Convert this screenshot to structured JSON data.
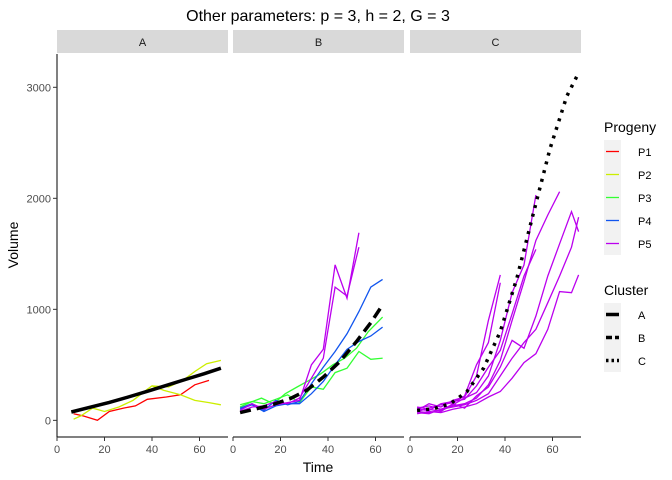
{
  "chart_data": {
    "type": "line",
    "title": "Other parameters: p = 3, h = 2, G = 3",
    "xlabel": "Time",
    "ylabel": "Volume",
    "xlim": [
      0,
      72
    ],
    "ylim": [
      -150,
      3300
    ],
    "x_ticks": [
      0,
      20,
      40,
      60
    ],
    "y_ticks": [
      0,
      1000,
      2000,
      3000
    ],
    "facets": [
      "A",
      "B",
      "C"
    ],
    "grid": false,
    "legend_placement": "right",
    "progeny_legend": {
      "title": "Progeny",
      "entries": [
        {
          "name": "P1",
          "color": "#ff0000"
        },
        {
          "name": "P2",
          "color": "#ccee00"
        },
        {
          "name": "P3",
          "color": "#33ff33"
        },
        {
          "name": "P4",
          "color": "#1155ee"
        },
        {
          "name": "P5",
          "color": "#bb00ee"
        }
      ]
    },
    "cluster_legend": {
      "title": "Cluster",
      "entries": [
        {
          "name": "A",
          "dash": "solid"
        },
        {
          "name": "B",
          "dash": "dashed"
        },
        {
          "name": "C",
          "dash": "dotted"
        }
      ]
    },
    "panels": [
      {
        "facet": "A",
        "series": [
          {
            "progeny": "P1",
            "x": [
              7,
              11,
              17,
              22,
              28,
              33,
              38,
              46,
              52,
              58,
              64
            ],
            "y": [
              60,
              40,
              0,
              80,
              110,
              130,
              190,
              210,
              230,
              320,
              360
            ]
          },
          {
            "progeny": "P2",
            "x": [
              7,
              10,
              15,
              20,
              26,
              32,
              38,
              40,
              45,
              52,
              58,
              64,
              69
            ],
            "y": [
              10,
              40,
              110,
              80,
              120,
              180,
              280,
              310,
              270,
              230,
              180,
              160,
              140
            ]
          },
          {
            "progeny": "P2",
            "x": [
              40,
              47,
              53,
              58,
              63,
              69
            ],
            "y": [
              310,
              300,
              360,
              440,
              510,
              540
            ]
          }
        ],
        "cluster_curve": {
          "cluster": "A",
          "x": [
            6,
            14,
            22,
            30,
            38,
            46,
            54,
            62,
            69
          ],
          "y": [
            75,
            118,
            162,
            210,
            262,
            315,
            368,
            420,
            470
          ]
        }
      },
      {
        "facet": "B",
        "series": [
          {
            "progeny": "P3",
            "x": [
              3,
              7,
              12,
              17,
              22,
              27,
              32,
              37,
              42,
              47,
              52,
              57,
              63
            ],
            "y": [
              120,
              160,
              200,
              150,
              240,
              300,
              360,
              420,
              500,
              560,
              650,
              800,
              930
            ]
          },
          {
            "progeny": "P3",
            "x": [
              3,
              8,
              13,
              18,
              23,
              28,
              33,
              38,
              43,
              48,
              53,
              58,
              63
            ],
            "y": [
              140,
              170,
              150,
              190,
              230,
              160,
              300,
              280,
              430,
              470,
              620,
              550,
              560
            ]
          },
          {
            "progeny": "P4",
            "x": [
              3,
              8,
              13,
              18,
              23,
              28,
              33,
              38,
              43,
              48,
              53,
              58,
              63
            ],
            "y": [
              110,
              150,
              90,
              180,
              140,
              170,
              330,
              480,
              620,
              780,
              980,
              1200,
              1270
            ]
          },
          {
            "progeny": "P4",
            "x": [
              3,
              8,
              13,
              18,
              23,
              28,
              33,
              38,
              43,
              48,
              53,
              58,
              63
            ],
            "y": [
              100,
              140,
              80,
              130,
              150,
              150,
              240,
              350,
              500,
              640,
              710,
              760,
              840
            ]
          },
          {
            "progeny": "P5",
            "x": [
              3,
              8,
              13,
              18,
              23,
              28,
              33,
              38,
              43,
              48,
              53
            ],
            "y": [
              90,
              150,
              100,
              140,
              160,
              180,
              500,
              640,
              1400,
              1100,
              1690
            ]
          },
          {
            "progeny": "P5",
            "x": [
              3,
              8,
              13,
              18,
              23,
              28,
              33,
              38,
              43,
              48,
              53
            ],
            "y": [
              80,
              120,
              130,
              170,
              150,
              200,
              380,
              560,
              1200,
              1120,
              1560
            ]
          }
        ],
        "cluster_curve": {
          "cluster": "B",
          "x": [
            3,
            10,
            17,
            24,
            31,
            38,
            45,
            52,
            58,
            63
          ],
          "y": [
            70,
            105,
            145,
            195,
            270,
            390,
            530,
            710,
            880,
            1040
          ]
        }
      },
      {
        "facet": "C",
        "series": [
          {
            "progeny": "P5",
            "x": [
              3,
              8,
              13,
              18,
              23,
              28,
              33,
              38
            ],
            "y": [
              90,
              150,
              120,
              180,
              210,
              400,
              900,
              1310
            ]
          },
          {
            "progeny": "P5",
            "x": [
              3,
              8,
              13,
              18,
              23,
              28,
              33,
              38
            ],
            "y": [
              80,
              110,
              140,
              160,
              220,
              500,
              700,
              1240
            ]
          },
          {
            "progeny": "P5",
            "x": [
              3,
              8,
              13,
              18,
              23,
              28,
              33,
              38,
              43,
              48,
              53
            ],
            "y": [
              110,
              130,
              100,
              140,
              200,
              250,
              400,
              720,
              1150,
              1400,
              2030
            ]
          },
          {
            "progeny": "P5",
            "x": [
              3,
              8,
              13,
              18,
              23,
              28,
              33,
              38,
              43,
              48,
              53
            ],
            "y": [
              100,
              90,
              150,
              170,
              190,
              310,
              480,
              630,
              960,
              1300,
              1540
            ]
          },
          {
            "progeny": "P5",
            "x": [
              3,
              8,
              13,
              18,
              23,
              28,
              33,
              38,
              43,
              48,
              53,
              58,
              63
            ],
            "y": [
              80,
              70,
              90,
              130,
              150,
              200,
              320,
              540,
              900,
              1250,
              1620,
              1850,
              2060
            ]
          },
          {
            "progeny": "P5",
            "x": [
              3,
              8,
              13,
              18,
              23,
              28,
              33,
              38,
              43,
              48,
              53,
              58,
              63,
              68,
              71
            ],
            "y": [
              120,
              100,
              80,
              150,
              110,
              220,
              300,
              480,
              720,
              650,
              940,
              1300,
              1590,
              1880,
              1700
            ]
          },
          {
            "progeny": "P5",
            "x": [
              3,
              8,
              13,
              18,
              23,
              28,
              33,
              38,
              43,
              48,
              53,
              58,
              63,
              68,
              71
            ],
            "y": [
              70,
              60,
              100,
              120,
              140,
              180,
              240,
              400,
              560,
              700,
              820,
              1060,
              1300,
              1560,
              1830
            ]
          },
          {
            "progeny": "P5",
            "x": [
              3,
              8,
              13,
              18,
              23,
              28,
              33,
              38,
              43,
              48,
              53,
              58,
              63,
              68,
              71
            ],
            "y": [
              60,
              80,
              70,
              100,
              120,
              150,
              210,
              260,
              380,
              520,
              600,
              820,
              1160,
              1150,
              1310
            ]
          }
        ],
        "cluster_curve": {
          "cluster": "C",
          "x": [
            3,
            10,
            17,
            24,
            31,
            38,
            45,
            52,
            59,
            66,
            71
          ],
          "y": [
            90,
            105,
            150,
            260,
            470,
            800,
            1280,
            1870,
            2450,
            2920,
            3130
          ]
        }
      }
    ]
  }
}
